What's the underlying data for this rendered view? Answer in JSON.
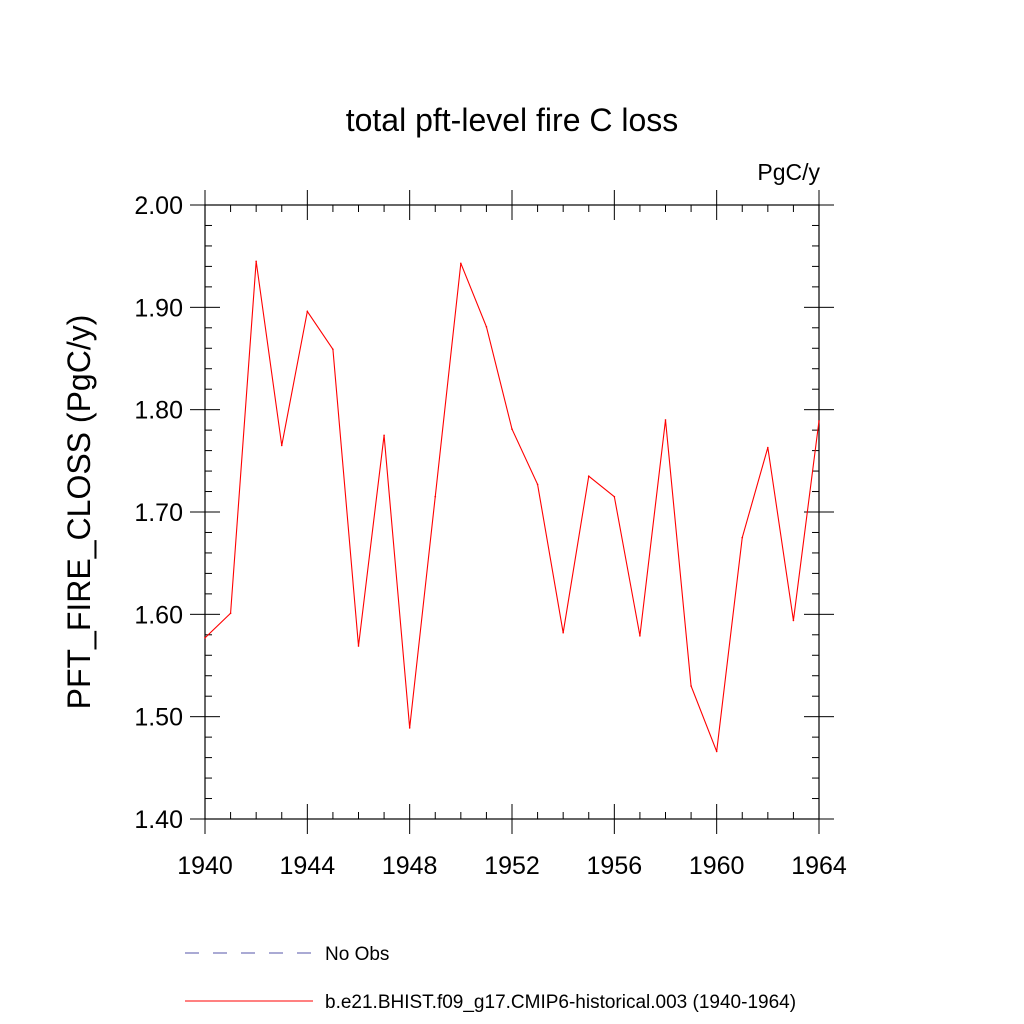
{
  "chart_data": {
    "type": "line",
    "title": "total pft-level fire C loss",
    "units_label": "PgC/y",
    "ylabel": "PFT_FIRE_CLOSS  (PgC/y)",
    "xlabel": "",
    "xlim": [
      1940,
      1964
    ],
    "ylim": [
      1.4,
      2.0
    ],
    "x_ticks": [
      1940,
      1944,
      1948,
      1952,
      1956,
      1960,
      1964
    ],
    "y_ticks": [
      "1.40",
      "1.50",
      "1.60",
      "1.70",
      "1.80",
      "1.90",
      "2.00"
    ],
    "grid": false,
    "legend_position": "bottom",
    "series": [
      {
        "name": "b.e21.BHIST.f09_g17.CMIP6-historical.003 (1940-1964)",
        "color": "#ff0000",
        "style": "solid",
        "x": [
          1940,
          1941,
          1942,
          1943,
          1944,
          1945,
          1946,
          1947,
          1948,
          1949,
          1950,
          1951,
          1952,
          1953,
          1954,
          1955,
          1956,
          1957,
          1958,
          1959,
          1960,
          1961,
          1962,
          1963,
          1964
        ],
        "values": [
          1.577,
          1.601,
          1.945,
          1.765,
          1.896,
          1.859,
          1.569,
          1.775,
          1.489,
          1.715,
          1.943,
          1.881,
          1.781,
          1.727,
          1.582,
          1.735,
          1.715,
          1.579,
          1.79,
          1.53,
          1.466,
          1.675,
          1.763,
          1.594,
          1.789
        ]
      }
    ],
    "legend": [
      {
        "label": "No Obs",
        "color": "#5555aa",
        "style": "dashed"
      },
      {
        "label": "b.e21.BHIST.f09_g17.CMIP6-historical.003 (1940-1964)",
        "color": "#ff0000",
        "style": "solid"
      }
    ]
  }
}
